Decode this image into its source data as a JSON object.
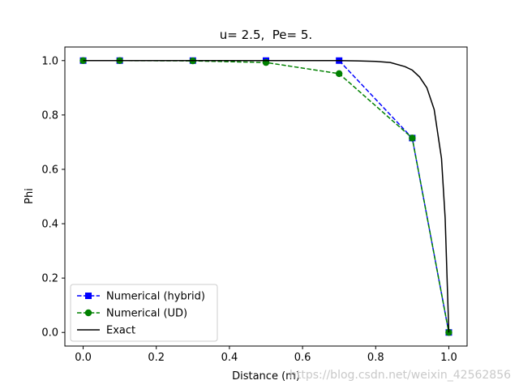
{
  "chart_data": {
    "type": "line",
    "title": "u= 2.5,  Pe= 5.",
    "xlabel": "Distance (m)",
    "ylabel": "Phi",
    "xlim": [
      -0.05,
      1.05
    ],
    "ylim": [
      -0.05,
      1.05
    ],
    "xticks": [
      0.0,
      0.2,
      0.4,
      0.6,
      0.8,
      1.0
    ],
    "xtick_labels": [
      "0.0",
      "0.2",
      "0.4",
      "0.6",
      "0.8",
      "1.0"
    ],
    "yticks": [
      0.0,
      0.2,
      0.4,
      0.6,
      0.8,
      1.0
    ],
    "ytick_labels": [
      "0.0",
      "0.2",
      "0.4",
      "0.6",
      "0.8",
      "1.0"
    ],
    "grid": false,
    "legend_position": "lower-left",
    "series": [
      {
        "name": "Numerical (hybrid)",
        "color": "#0000ff",
        "linestyle": "dashed",
        "marker": "square",
        "x": [
          0.0,
          0.1,
          0.3,
          0.5,
          0.7,
          0.9,
          1.0
        ],
        "y": [
          1.0,
          1.0,
          1.0,
          1.0,
          1.0,
          0.715,
          0.0
        ]
      },
      {
        "name": "Numerical (UD)",
        "color": "#008000",
        "linestyle": "dashed",
        "marker": "circle",
        "x": [
          0.0,
          0.1,
          0.3,
          0.5,
          0.7,
          0.9,
          1.0
        ],
        "y": [
          1.0,
          1.0,
          0.999,
          0.993,
          0.952,
          0.715,
          0.0
        ]
      },
      {
        "name": "Exact",
        "color": "#000000",
        "linestyle": "solid",
        "marker": "none",
        "x": [
          0.0,
          0.1,
          0.2,
          0.3,
          0.4,
          0.5,
          0.6,
          0.7,
          0.75,
          0.8,
          0.84,
          0.88,
          0.9,
          0.92,
          0.94,
          0.96,
          0.98,
          0.99,
          1.0
        ],
        "y": [
          1.0,
          1.0,
          1.0,
          1.0,
          1.0,
          1.0,
          1.0,
          1.0,
          0.999,
          0.997,
          0.993,
          0.978,
          0.965,
          0.94,
          0.9,
          0.82,
          0.64,
          0.42,
          0.0
        ]
      }
    ]
  },
  "watermark": "https://blog.csdn.net/weixin_42562856"
}
